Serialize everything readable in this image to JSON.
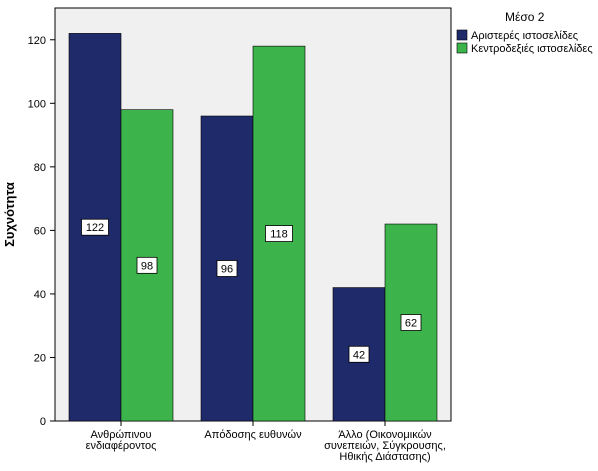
{
  "chart_data": {
    "type": "bar",
    "categories": [
      [
        "Ανθρώπινου",
        "ενδιαφέροντος"
      ],
      [
        "Απόδοσης ευθυνών"
      ],
      [
        "Άλλο (Οικονομικών",
        "συνεπειών, Σύγκρουσης,",
        "Ηθικής Διάστασης)"
      ]
    ],
    "series": [
      {
        "name": "Αριστερές ιστοσελίδες",
        "values": [
          122,
          96,
          42
        ],
        "color": "#1f2a6b"
      },
      {
        "name": "Κεντροδεξιές ιστοσελίδες",
        "values": [
          98,
          118,
          62
        ],
        "color": "#3cb44b"
      }
    ],
    "title": "",
    "xlabel": "",
    "ylabel": "Συχνότητα",
    "ylim": [
      0,
      130
    ],
    "yticks": [
      "0",
      "20",
      "40",
      "60",
      "80",
      "100",
      "120"
    ],
    "legend_title": "Μέσο 2",
    "legend_position": "top-right",
    "plot_background": "#f0f0f0",
    "grid": false,
    "data_labels": true
  }
}
